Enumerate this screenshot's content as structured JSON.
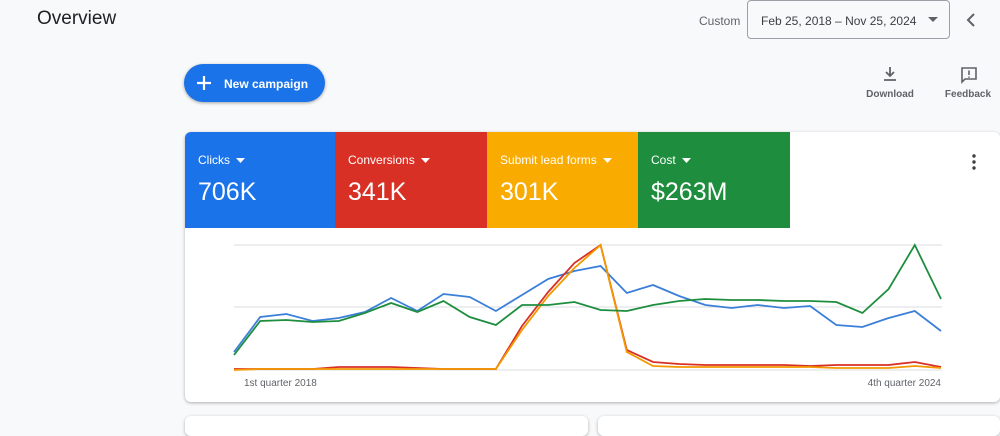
{
  "header": {
    "title": "Overview",
    "range_label": "Custom",
    "date_range": "Feb 25, 2018 – Nov 25, 2024"
  },
  "actions": {
    "new_campaign": "New campaign",
    "download": "Download",
    "feedback": "Feedback"
  },
  "tiles": [
    {
      "label": "Clicks",
      "value": "706K",
      "color": "#1a73e8"
    },
    {
      "label": "Conversions",
      "value": "341K",
      "color": "#d93025"
    },
    {
      "label": "Submit lead forms",
      "value": "301K",
      "color": "#f9ab00"
    },
    {
      "label": "Cost",
      "value": "$263M",
      "color": "#1e8e3e"
    }
  ],
  "chart_data": {
    "type": "line",
    "x_start_label": "1st quarter 2018",
    "x_end_label": "4th quarter 2024",
    "series": [
      {
        "color": "#3b7fd9",
        "values": [
          18,
          53,
          56,
          49,
          52,
          58,
          72,
          59,
          76,
          73,
          59,
          75,
          91,
          99,
          104,
          77,
          85,
          74,
          65,
          62,
          65,
          62,
          64,
          45,
          43,
          52,
          59,
          39
        ]
      },
      {
        "color": "#d93025",
        "values": [
          1,
          1,
          1,
          1,
          3,
          3,
          3,
          2,
          1,
          1,
          1,
          44,
          78,
          107,
          125,
          20,
          8,
          6,
          5,
          5,
          5,
          5,
          4,
          5,
          5,
          5,
          8,
          3
        ]
      },
      {
        "color": "#f29900",
        "values": [
          0,
          1,
          1,
          1,
          1,
          1,
          1,
          1,
          1,
          1,
          1,
          40,
          74,
          102,
          125,
          18,
          4,
          3,
          3,
          3,
          3,
          3,
          3,
          2,
          2,
          2,
          4,
          2
        ]
      },
      {
        "color": "#1e8e3e",
        "values": [
          15,
          49,
          50,
          48,
          49,
          57,
          67,
          58,
          69,
          53,
          45,
          65,
          65,
          68,
          60,
          59,
          65,
          69,
          71,
          70,
          70,
          69,
          69,
          68,
          57,
          81,
          125,
          71
        ]
      }
    ]
  }
}
